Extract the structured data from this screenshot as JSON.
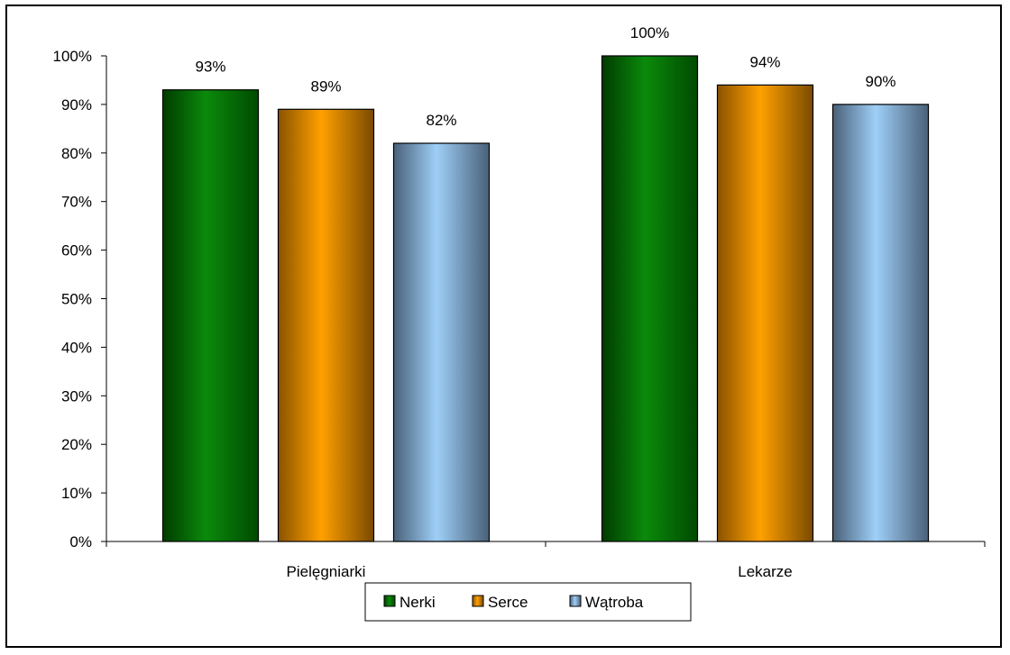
{
  "chart_data": {
    "type": "bar",
    "categories": [
      "Pielęgniarki",
      "Lekarze"
    ],
    "series": [
      {
        "name": "Nerki",
        "values": [
          93,
          100
        ],
        "labels": [
          "93%",
          "100%"
        ]
      },
      {
        "name": "Serce",
        "values": [
          89,
          94
        ],
        "labels": [
          "89%",
          "94%"
        ]
      },
      {
        "name": "Wątroba",
        "values": [
          82,
          90
        ],
        "labels": [
          "82%",
          "90%"
        ]
      }
    ],
    "ylim": [
      0,
      100
    ],
    "yticks": [
      "0%",
      "10%",
      "20%",
      "30%",
      "40%",
      "50%",
      "60%",
      "70%",
      "80%",
      "90%",
      "100%"
    ],
    "grid": false,
    "legend": "bottom",
    "colors": {
      "Nerki": [
        "#003b00",
        "#0b8a0b",
        "#004a00"
      ],
      "Serce": [
        "#8a5200",
        "#ffa000",
        "#7a4a00"
      ],
      "Wątroba": [
        "#4a6078",
        "#9ecff8",
        "#4a6078"
      ]
    }
  }
}
